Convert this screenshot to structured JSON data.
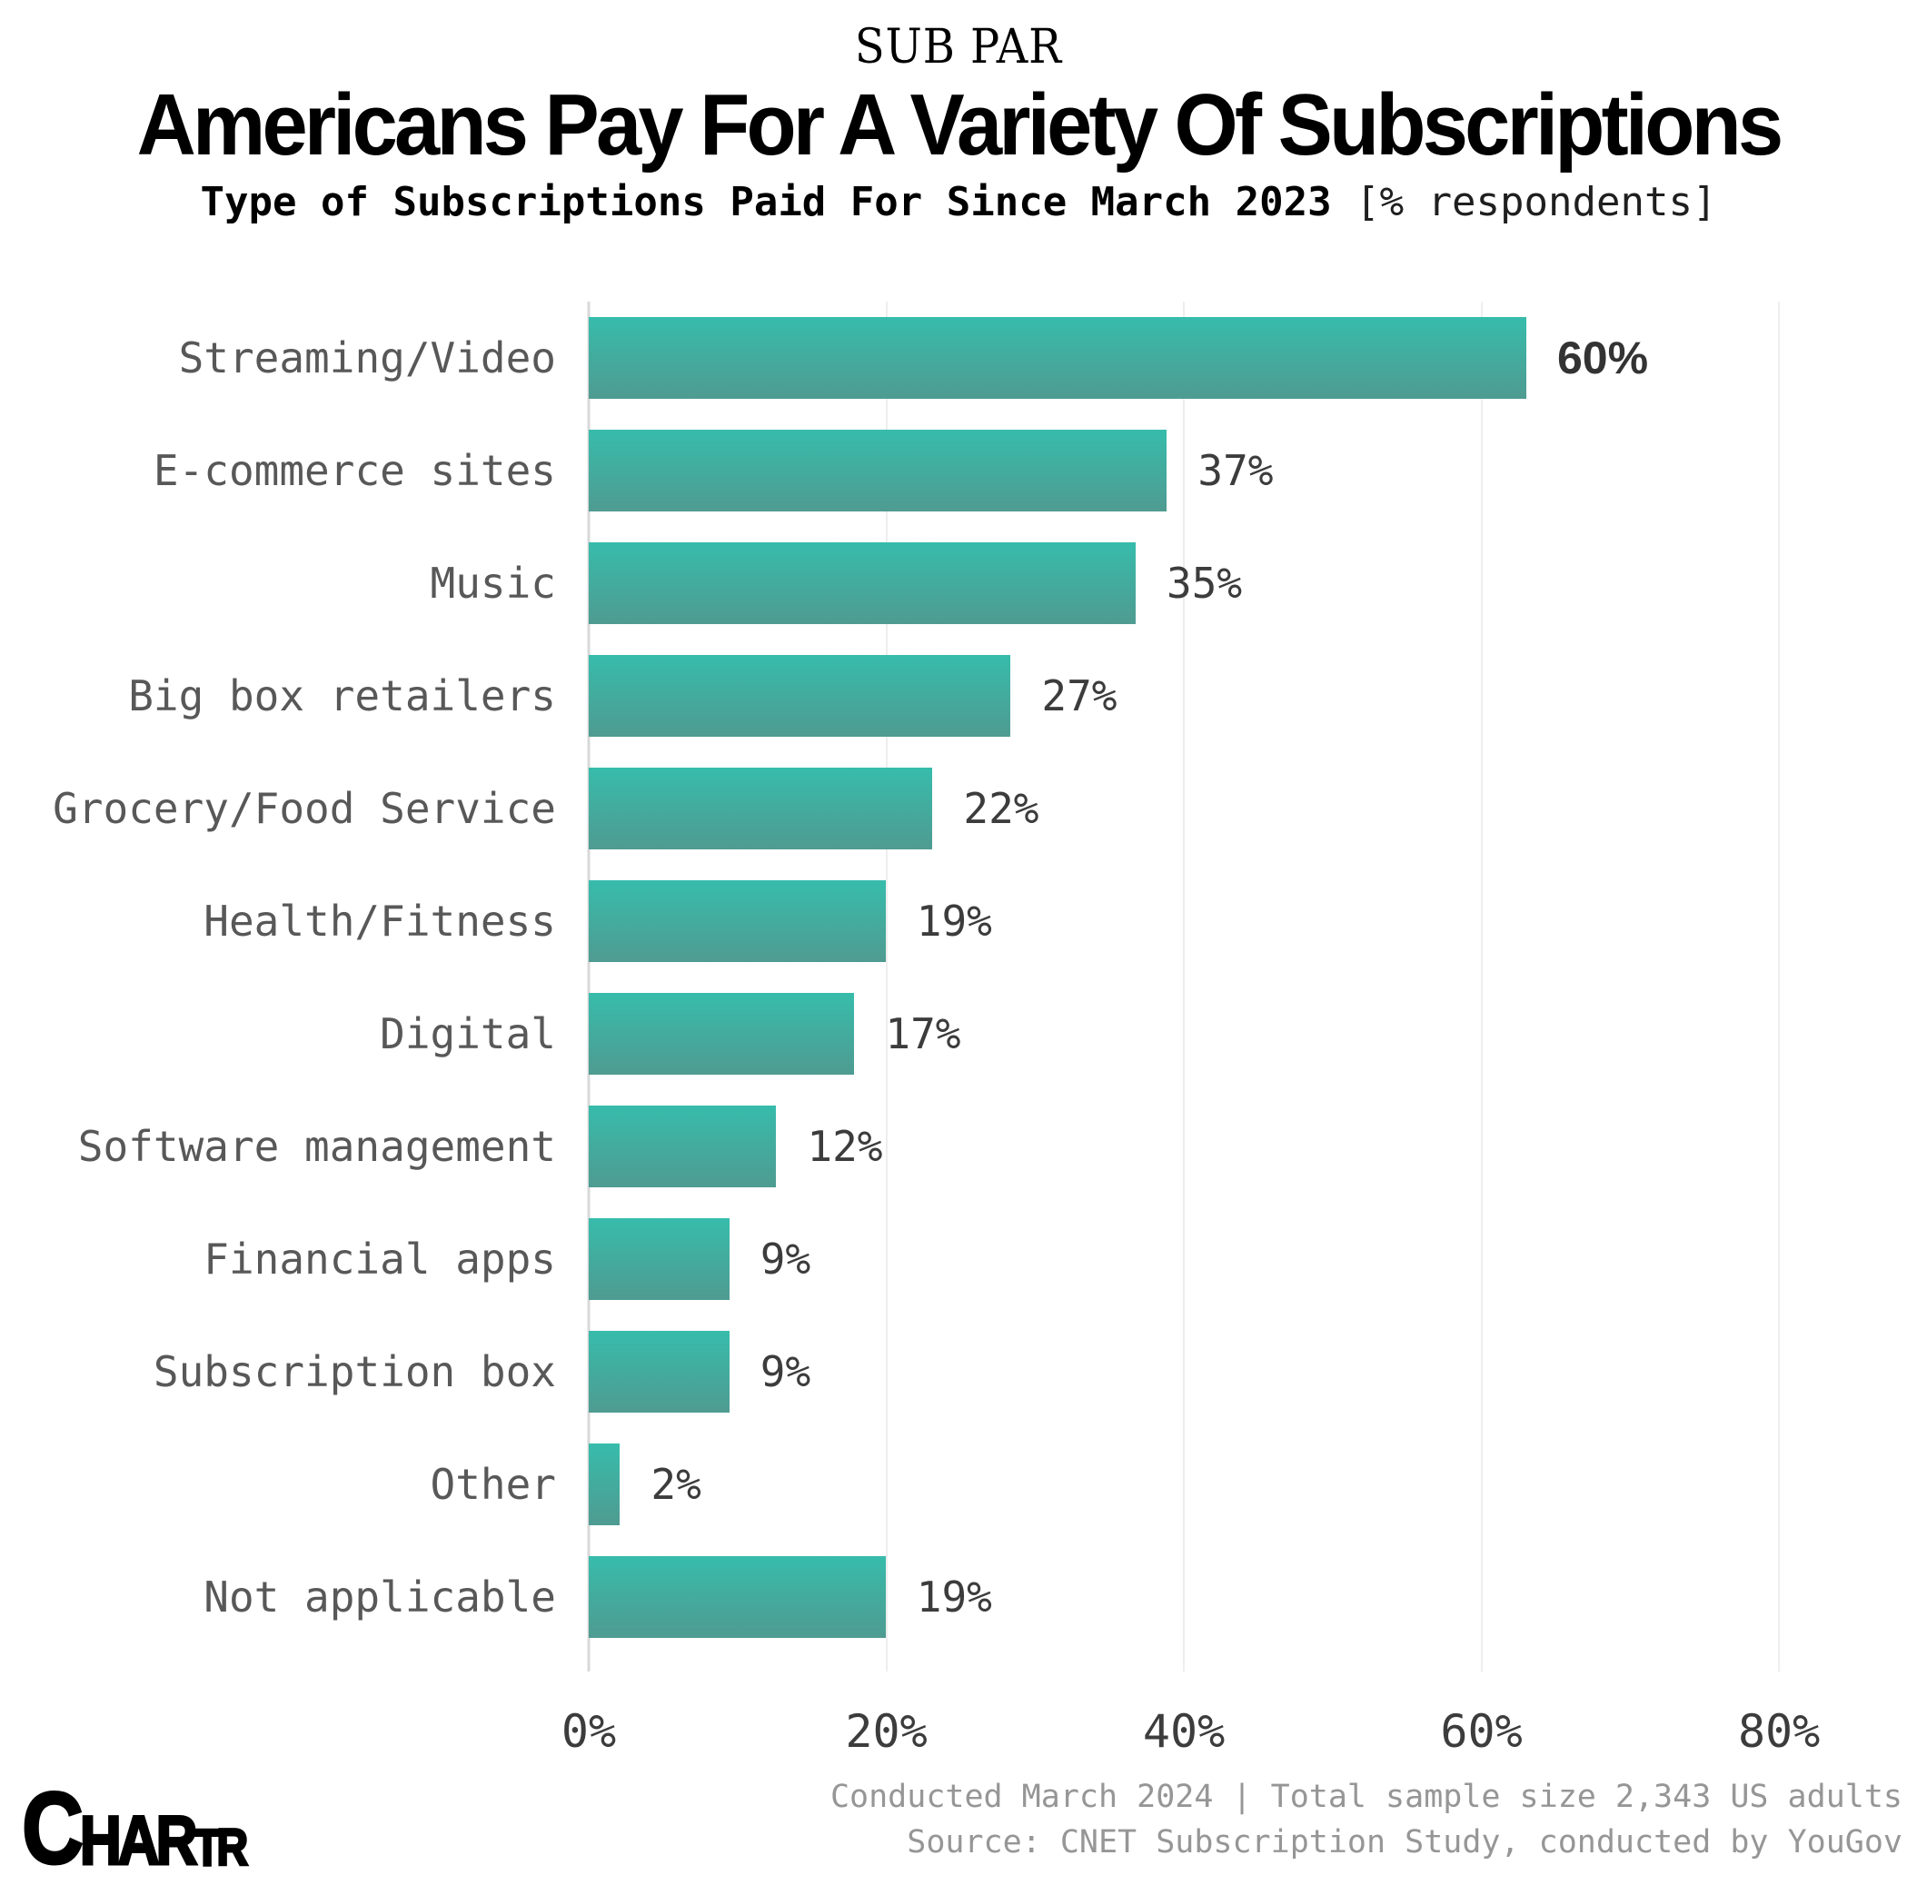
{
  "kicker": "SUB PAR",
  "title": "Americans Pay For A Variety Of Subscriptions",
  "subtitle": {
    "main": "Type of Subscriptions Paid For Since March 2023",
    "note": "[% respondents]"
  },
  "chart_data": {
    "type": "bar",
    "orientation": "horizontal",
    "title": "Americans Pay For A Variety Of Subscriptions",
    "subtitle": "Type of Subscriptions Paid For Since March 2023 [% respondents]",
    "categories": [
      "Streaming/Video",
      "E-commerce sites",
      "Music",
      "Big box retailers",
      "Grocery/Food Service",
      "Health/Fitness",
      "Digital",
      "Software management",
      "Financial apps",
      "Subscription box",
      "Other",
      "Not applicable"
    ],
    "values": [
      60,
      37,
      35,
      27,
      22,
      19,
      17,
      12,
      9,
      9,
      2,
      19
    ],
    "value_labels": [
      "60%",
      "37%",
      "35%",
      "27%",
      "22%",
      "19%",
      "17%",
      "12%",
      "9%",
      "9%",
      "2%",
      "19%"
    ],
    "emphasized_index": 0,
    "xlabel": "",
    "ylabel": "",
    "xlim": [
      0,
      85
    ],
    "grid": true,
    "ticks": [
      {
        "value": 0,
        "label": "0%"
      },
      {
        "value": 20,
        "label": "20%"
      },
      {
        "value": 40,
        "label": "40%"
      },
      {
        "value": 60,
        "label": "60%"
      },
      {
        "value": 80,
        "label": "80%"
      }
    ],
    "bar_color_top": "#37BCAB",
    "bar_color_bottom": "#4F9B91"
  },
  "footer": {
    "line1": "Conducted March 2024 | Total sample size  2,343 US adults",
    "line2": "Source: CNET Subscription Study, conducted by YouGov"
  },
  "logo": {
    "big": "C",
    "mid": "HAR",
    "small": "TR"
  }
}
